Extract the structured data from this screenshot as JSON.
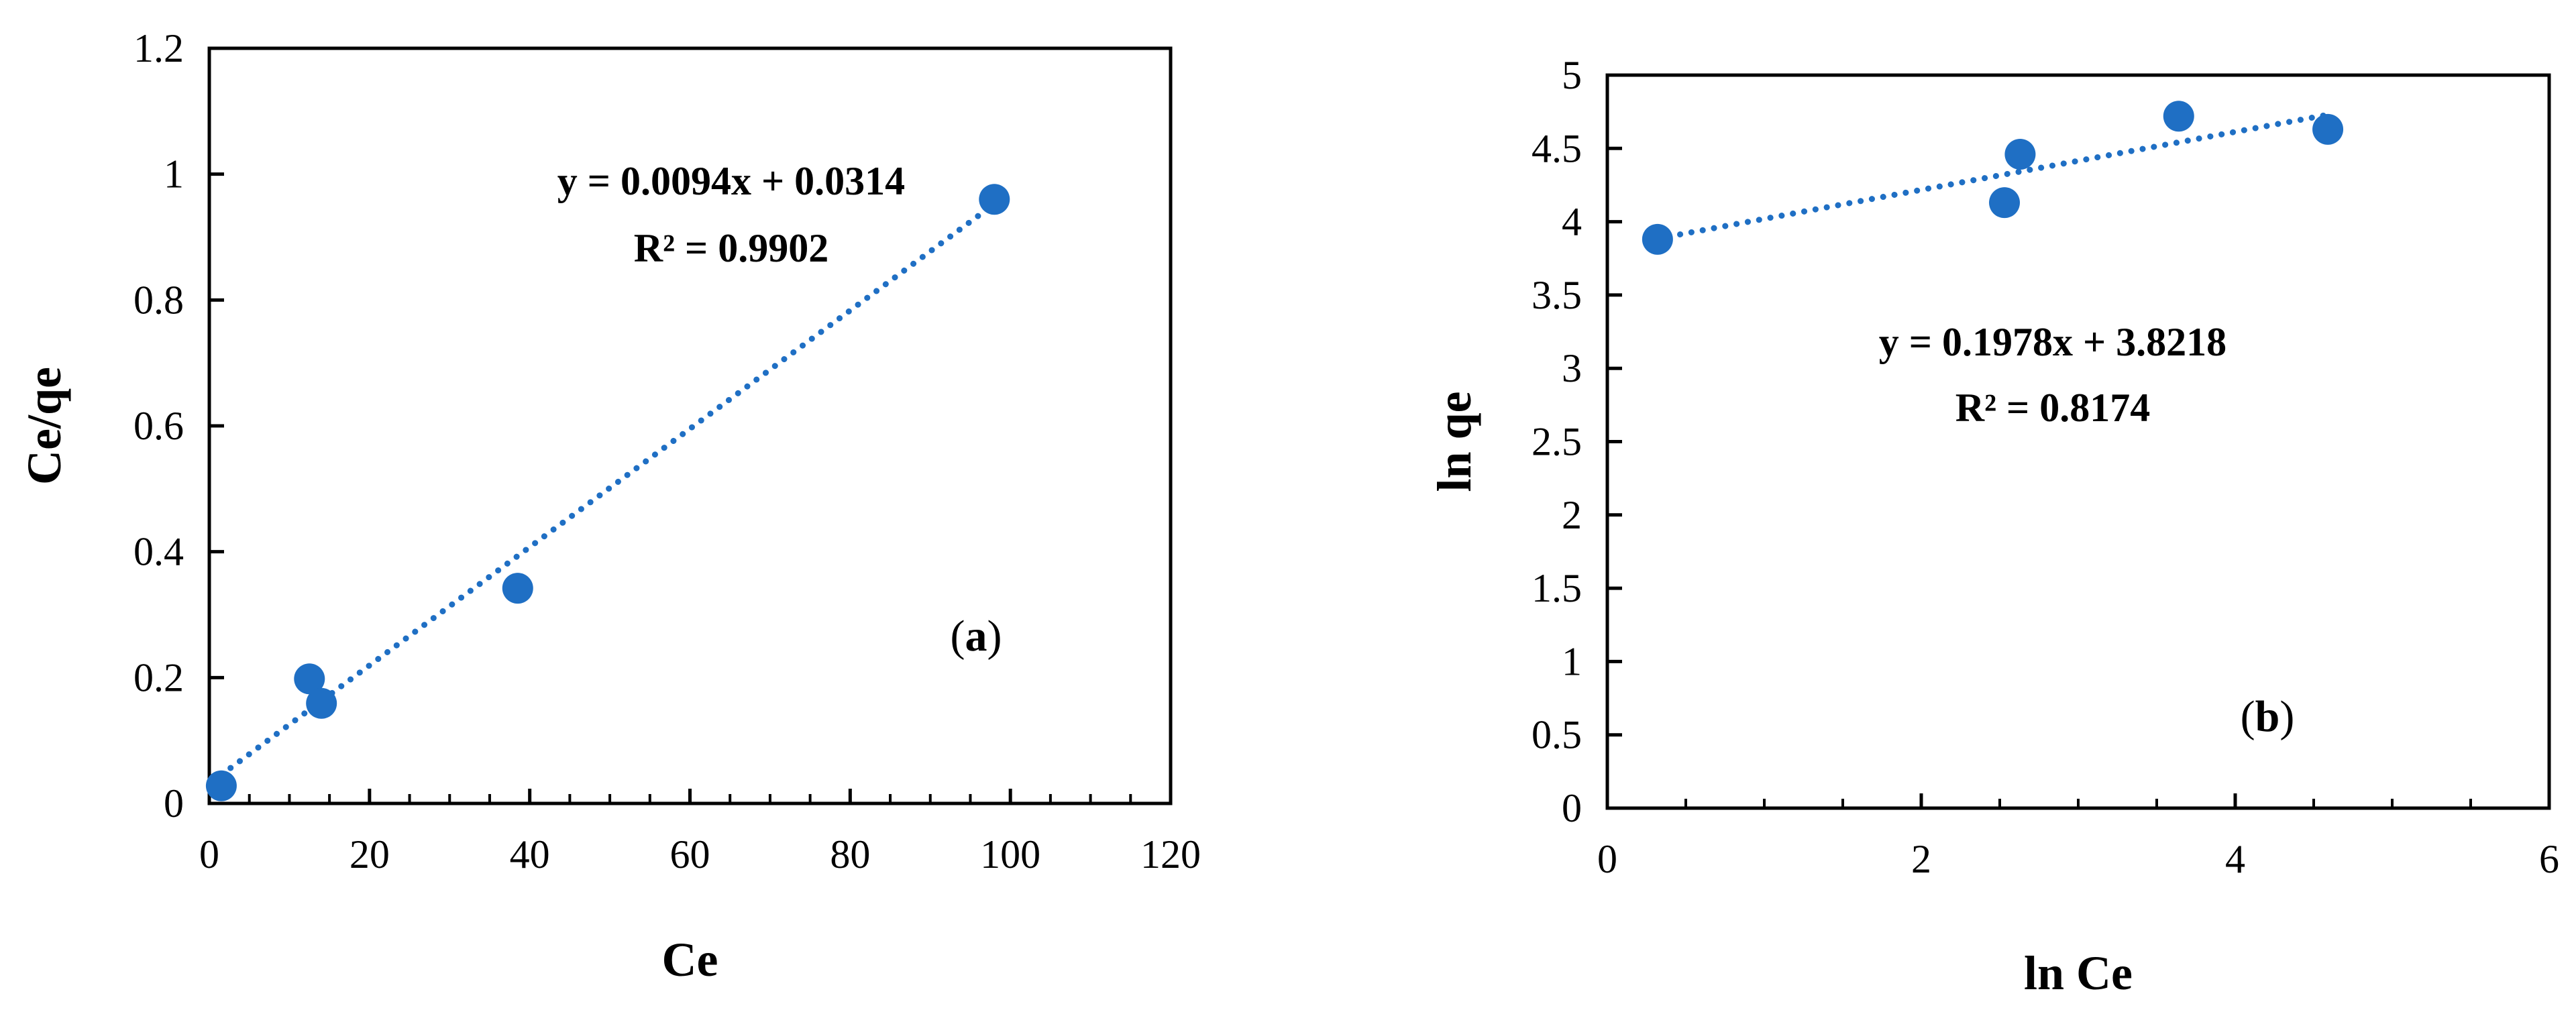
{
  "chart_data": [
    {
      "type": "scatter",
      "panel": "(a)",
      "panel_letter": "a",
      "title": "",
      "xlabel": "Ce",
      "ylabel": "Ce/qe",
      "xlim": [
        0,
        120
      ],
      "ylim": [
        0,
        1.2
      ],
      "xticks": [
        0,
        20,
        40,
        60,
        80,
        100,
        120
      ],
      "yticks": [
        0,
        0.2,
        0.4,
        0.6,
        0.8,
        1,
        1.2
      ],
      "xtick_labels": [
        "0",
        "20",
        "40",
        "60",
        "80",
        "100",
        "120"
      ],
      "ytick_labels": [
        "0",
        "0.2",
        "0.4",
        "0.6",
        "0.8",
        "1",
        "1.2"
      ],
      "grid": false,
      "points": [
        {
          "x": 1.5,
          "y": 0.028
        },
        {
          "x": 12.5,
          "y": 0.198
        },
        {
          "x": 14.0,
          "y": 0.159
        },
        {
          "x": 38.5,
          "y": 0.342
        },
        {
          "x": 98.0,
          "y": 0.96
        }
      ],
      "trendline": {
        "type": "linear",
        "slope": 0.0094,
        "intercept": 0.0314,
        "x_range": [
          1.5,
          98.0
        ]
      },
      "equation": "y = 0.0094x + 0.0314",
      "r2_prefix": "R² = ",
      "r2_value": "0.9902",
      "marker_color": "#1f6fc4",
      "trend_color": "#1f6fc4"
    },
    {
      "type": "scatter",
      "panel": "(b)",
      "panel_letter": "b",
      "title": "",
      "xlabel": "ln Ce",
      "ylabel": "ln qe",
      "xlim": [
        0,
        6
      ],
      "ylim": [
        0,
        5
      ],
      "xticks": [
        0,
        2,
        4,
        6
      ],
      "yticks": [
        0,
        0.5,
        1,
        1.5,
        2,
        2.5,
        3,
        3.5,
        4,
        4.5,
        5
      ],
      "xtick_labels": [
        "0",
        "2",
        "4",
        "6"
      ],
      "ytick_labels": [
        "0",
        "0.5",
        "1",
        "1.5",
        "2",
        "2.5",
        "3",
        "3.5",
        "4",
        "4.5",
        "5"
      ],
      "grid": false,
      "points": [
        {
          "x": 0.32,
          "y": 3.88
        },
        {
          "x": 2.53,
          "y": 4.13
        },
        {
          "x": 2.63,
          "y": 4.46
        },
        {
          "x": 3.64,
          "y": 4.72
        },
        {
          "x": 4.59,
          "y": 4.63
        }
      ],
      "trendline": {
        "type": "linear",
        "slope": 0.1978,
        "intercept": 3.8218,
        "x_range": [
          0.32,
          4.59
        ]
      },
      "equation": "y = 0.1978x + 3.8218",
      "r2_prefix": "R² = ",
      "r2_value": "0.8174",
      "marker_color": "#1f6fc4",
      "trend_color": "#1f6fc4"
    }
  ]
}
